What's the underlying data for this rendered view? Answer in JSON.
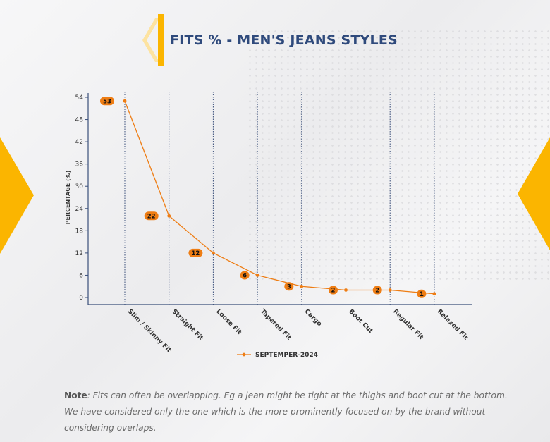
{
  "page": {
    "title": "FITS % - MEN'S JEANS STYLES",
    "note_label": "Note",
    "note_text": ": Fits can often be overlapping. Eg a jean might be tight at the thighs and boot cut at the bottom. We have considered only the one which is the more prominently focused on by the brand without considering overlaps."
  },
  "colors": {
    "accent": "#fbb500",
    "title": "#2f4a7c",
    "series": "#ee7d14",
    "axis": "#3a4f7a"
  },
  "chart_data": {
    "type": "line",
    "title": "FITS % - MEN'S JEANS STYLES",
    "xlabel": "",
    "ylabel": "PERCENTAGE (%)",
    "ylim": [
      0,
      54
    ],
    "yticks": [
      0,
      6,
      12,
      18,
      24,
      30,
      36,
      42,
      48,
      54
    ],
    "grid": "vertical dotted lines at each category",
    "legend_position": "bottom-center",
    "categories": [
      "Slim / Skinny Fit",
      "Straight Fit",
      "Loose Fit",
      "Tapered Fit",
      "Cargo",
      "Boot Cut",
      "Regular Fit",
      "Relaxed Fit"
    ],
    "series": [
      {
        "name": "SEPTEMPER-2024",
        "values": [
          53,
          22,
          12,
          6,
          3,
          2,
          2,
          1
        ]
      }
    ]
  }
}
